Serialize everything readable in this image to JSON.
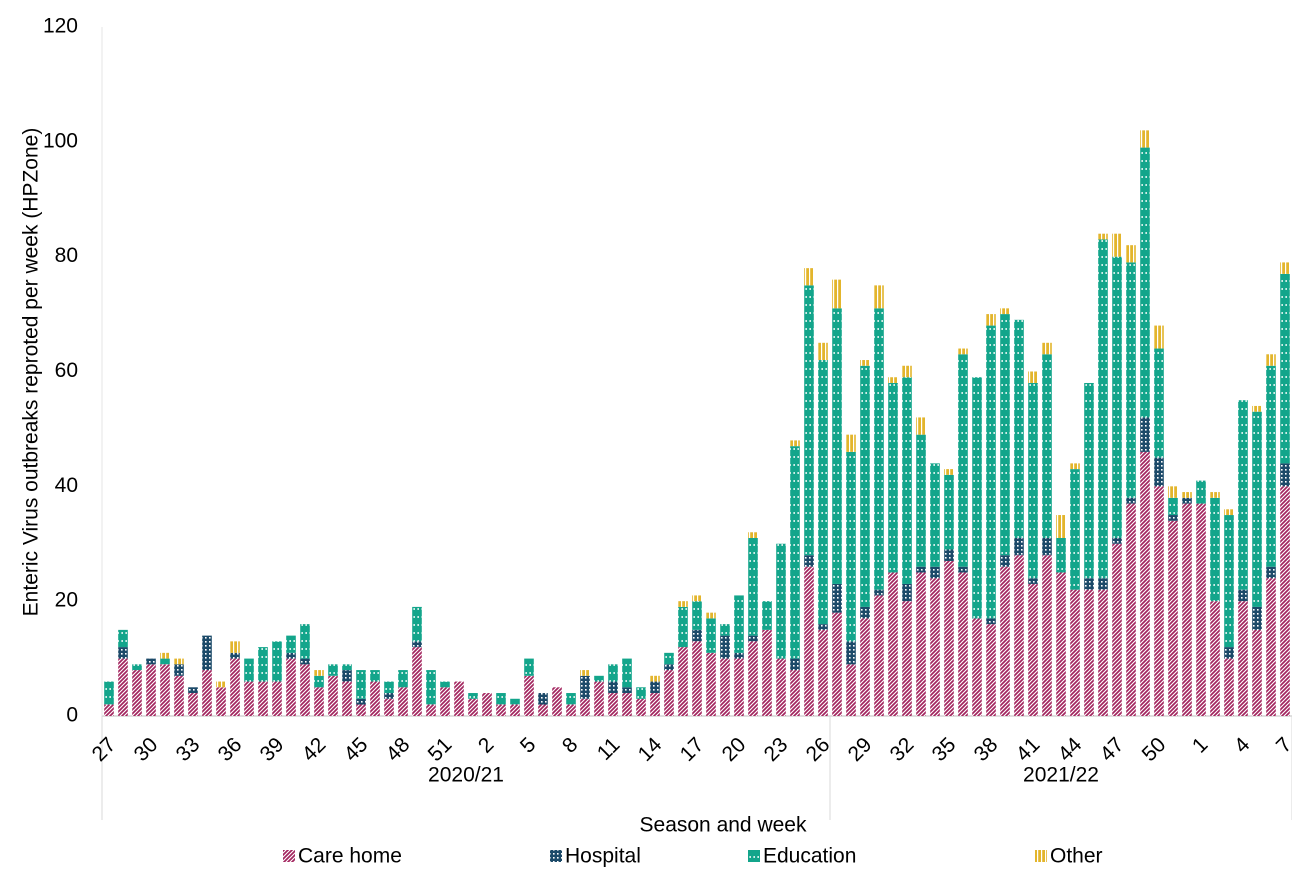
{
  "chart_data": {
    "type": "bar",
    "stacked": true,
    "y_label": "Enteric Virus outbreaks reproted per week (HPZone)",
    "x_label": "Season and week",
    "groups": [
      {
        "name": "2020/21",
        "categories": [
          "27",
          null,
          null,
          "30",
          null,
          null,
          "33",
          null,
          null,
          "36",
          null,
          null,
          "39",
          null,
          null,
          "42",
          null,
          null,
          "45",
          null,
          null,
          "48",
          null,
          null,
          "51",
          null,
          null,
          "2",
          null,
          null,
          "5",
          null,
          null,
          "8",
          null,
          null,
          "11",
          null,
          null,
          "14",
          null,
          null,
          "17",
          null,
          null,
          "20",
          null,
          null,
          "23",
          null,
          null,
          "26"
        ]
      },
      {
        "name": "2021/22",
        "categories": [
          null,
          null,
          "29",
          null,
          null,
          "32",
          null,
          null,
          "35",
          null,
          null,
          "38",
          null,
          null,
          "41",
          null,
          null,
          "44",
          null,
          null,
          "47",
          null,
          null,
          "50",
          null,
          null,
          "1",
          null,
          null,
          "4",
          null,
          null,
          "7"
        ]
      }
    ],
    "series": [
      {
        "name": "Care home",
        "color": "#a3255f",
        "values": [
          2,
          10,
          8,
          9,
          9,
          7,
          4,
          8,
          5,
          10,
          6,
          6,
          6,
          10,
          9,
          5,
          7,
          6,
          2,
          6,
          3,
          5,
          12,
          2,
          5,
          6,
          3,
          4,
          2,
          2,
          7,
          2,
          5,
          2,
          3,
          6,
          4,
          4,
          3,
          4,
          8,
          12,
          13,
          11,
          10,
          10,
          13,
          15,
          10,
          8,
          26,
          15,
          18,
          9,
          17,
          21,
          25,
          20,
          25,
          24,
          27,
          25,
          17,
          16,
          26,
          28,
          23,
          28,
          25,
          22,
          22,
          22,
          30,
          37,
          46,
          40,
          34,
          37,
          37,
          20,
          10,
          20,
          15,
          24,
          40
        ]
      },
      {
        "name": "Hospital",
        "color": "#1c4a69",
        "values": [
          0,
          2,
          0,
          1,
          0,
          2,
          1,
          6,
          0,
          1,
          0,
          0,
          0,
          1,
          1,
          0,
          0,
          2,
          1,
          0,
          1,
          0,
          1,
          0,
          0,
          0,
          0,
          0,
          0,
          0,
          0,
          2,
          0,
          0,
          4,
          0,
          2,
          1,
          0,
          2,
          1,
          0,
          2,
          0,
          4,
          1,
          1,
          0,
          0,
          2,
          2,
          1,
          5,
          4,
          2,
          1,
          0,
          3,
          1,
          2,
          2,
          1,
          0,
          1,
          2,
          3,
          1,
          3,
          0,
          0,
          2,
          2,
          1,
          1,
          6,
          5,
          1,
          1,
          0,
          0,
          2,
          2,
          4,
          2,
          4
        ]
      },
      {
        "name": "Education",
        "color": "#13a58b",
        "values": [
          4,
          3,
          1,
          0,
          1,
          0,
          0,
          0,
          0,
          0,
          4,
          6,
          7,
          3,
          6,
          2,
          2,
          1,
          5,
          2,
          2,
          3,
          6,
          6,
          1,
          0,
          1,
          0,
          2,
          1,
          3,
          0,
          0,
          2,
          0,
          1,
          3,
          5,
          2,
          0,
          2,
          7,
          5,
          6,
          2,
          10,
          17,
          5,
          20,
          37,
          47,
          46,
          48,
          33,
          42,
          49,
          33,
          36,
          23,
          18,
          13,
          37,
          42,
          51,
          42,
          38,
          34,
          32,
          6,
          21,
          34,
          59,
          49,
          41,
          47,
          19,
          3,
          0,
          4,
          18,
          23,
          33,
          34,
          35,
          33
        ]
      },
      {
        "name": "Other",
        "color": "#e3b52c",
        "values": [
          0,
          0,
          0,
          0,
          1,
          1,
          0,
          0,
          1,
          2,
          0,
          0,
          0,
          0,
          0,
          1,
          0,
          0,
          0,
          0,
          0,
          0,
          0,
          0,
          0,
          0,
          0,
          0,
          0,
          0,
          0,
          0,
          0,
          0,
          1,
          0,
          0,
          0,
          0,
          1,
          0,
          1,
          1,
          1,
          0,
          0,
          1,
          0,
          0,
          1,
          3,
          3,
          5,
          3,
          1,
          4,
          1,
          2,
          3,
          0,
          1,
          1,
          0,
          2,
          1,
          0,
          2,
          2,
          4,
          1,
          0,
          1,
          4,
          3,
          3,
          4,
          2,
          1,
          0,
          1,
          1,
          0,
          1,
          2,
          2
        ]
      }
    ],
    "ylim": [
      0,
      120
    ],
    "yticks": [
      0,
      20,
      40,
      60,
      80,
      100,
      120
    ],
    "grid": false
  }
}
